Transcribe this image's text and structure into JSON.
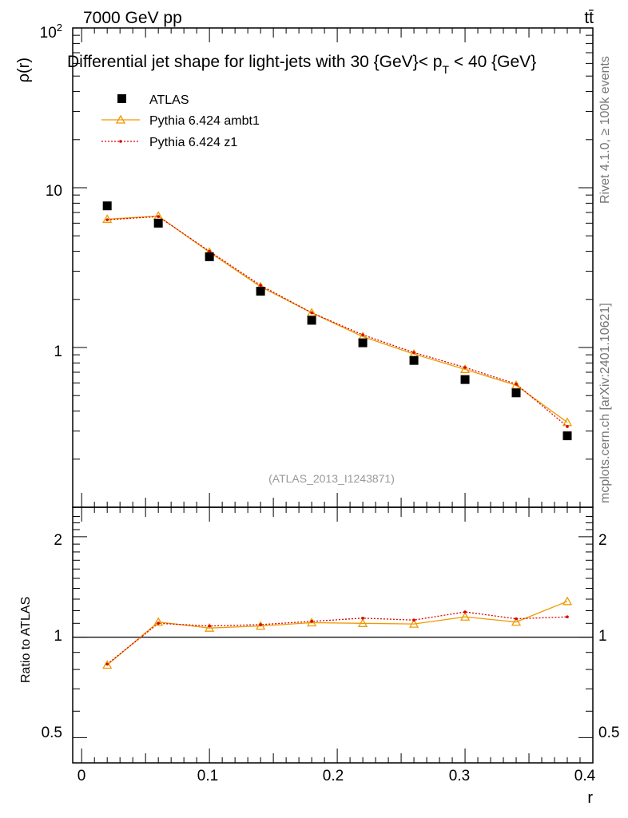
{
  "chart_data": {
    "type": "scatter",
    "header_left": "7000 GeV pp",
    "header_right": "tt̄",
    "title": "Differential jet shape for light-jets with 30 {GeV}< p_T < 40 {GeV}",
    "title_parts": {
      "main": "Differential jet shape for light-jets with 30 {GeV}< p",
      "sub": "T",
      "tail": " < 40 {GeV}"
    },
    "ylabel_parts": {
      "main": "ρ(r)"
    },
    "xlabel": "r",
    "ratio_ylabel": "Ratio to ATLAS",
    "reference": "(ATLAS_2013_I1243871)",
    "side_text_top": "Rivet 4.1.0, ≥ 100k events",
    "side_text_bottom": "mcplots.cern.ch [arXiv:2401.10621]",
    "xlim": [
      -0.007,
      0.4
    ],
    "ylim": [
      0.1,
      100
    ],
    "yscale": "log",
    "ratio_ylim": [
      0.42,
      2.45
    ],
    "x_ticks": [
      "0",
      "0.1",
      "0.2",
      "0.3",
      "0.4"
    ],
    "y_ticks": {
      "pow": "10",
      "exp": "2",
      "ten": "10",
      "one": "1"
    },
    "ratio_ticks": [
      "2",
      "1",
      "0.5"
    ],
    "x": [
      0.02,
      0.06,
      0.1,
      0.14,
      0.18,
      0.22,
      0.26,
      0.3,
      0.34,
      0.38
    ],
    "series": [
      {
        "name": "ATLAS",
        "color": "#000000",
        "marker": "square",
        "values": [
          7.7,
          6.0,
          3.7,
          2.25,
          1.48,
          1.07,
          0.83,
          0.63,
          0.52,
          0.28
        ]
      },
      {
        "name": "Pythia 6.424 ambt1",
        "color": "#ee9a00",
        "marker": "triangle",
        "values": [
          6.35,
          6.65,
          3.95,
          2.4,
          1.65,
          1.17,
          0.91,
          0.73,
          0.58,
          0.34
        ],
        "ratio": [
          0.825,
          1.11,
          1.065,
          1.08,
          1.105,
          1.1,
          1.095,
          1.15,
          1.11,
          1.28
        ]
      },
      {
        "name": "Pythia 6.424 z1",
        "color": "#dd0000",
        "marker": "dot",
        "values": [
          6.3,
          6.6,
          4.0,
          2.45,
          1.65,
          1.2,
          0.93,
          0.75,
          0.59,
          0.32
        ],
        "ratio": [
          0.83,
          1.1,
          1.08,
          1.09,
          1.115,
          1.14,
          1.125,
          1.19,
          1.135,
          1.15
        ]
      }
    ]
  }
}
